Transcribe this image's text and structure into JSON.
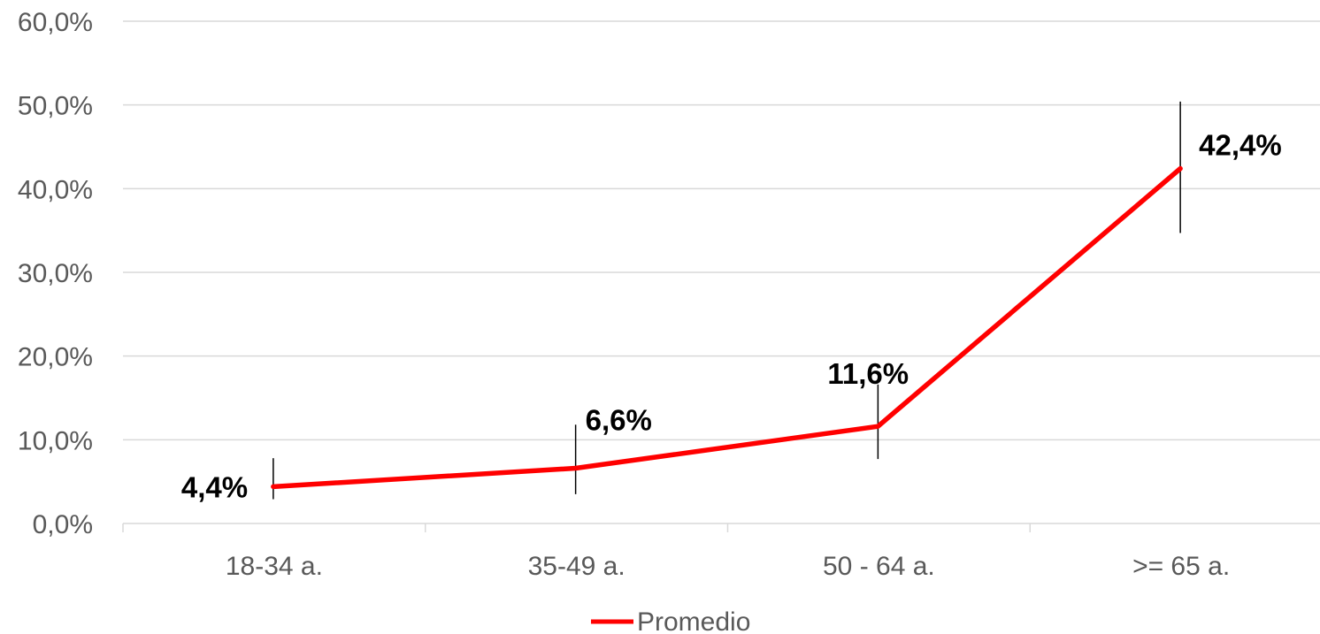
{
  "chart_data": {
    "type": "line",
    "categories": [
      "18-34 a.",
      "35-49 a.",
      "50 - 64 a.",
      ">= 65 a."
    ],
    "series": [
      {
        "name": "Promedio",
        "values": [
          4.4,
          6.6,
          11.6,
          42.4
        ],
        "error_low": [
          2.9,
          3.5,
          7.7,
          34.7
        ],
        "error_high": [
          7.8,
          11.8,
          16.6,
          50.4
        ],
        "labels": [
          "4,4%",
          "6,6%",
          "11,6%",
          "42,4%"
        ],
        "color": "#ff0000"
      }
    ],
    "yticks": [
      "0,0%",
      "10,0%",
      "20,0%",
      "30,0%",
      "40,0%",
      "50,0%",
      "60,0%"
    ],
    "ylim": [
      0,
      60
    ],
    "grid": true,
    "legend_position": "bottom"
  }
}
